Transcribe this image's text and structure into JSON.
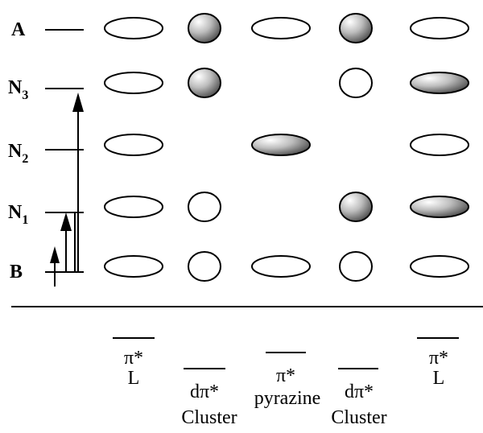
{
  "levels": [
    {
      "id": "A",
      "name": "A",
      "sub": ""
    },
    {
      "id": "N3",
      "name": "N",
      "sub": "3"
    },
    {
      "id": "N2",
      "name": "N",
      "sub": "2"
    },
    {
      "id": "N1",
      "name": "N",
      "sub": "1"
    },
    {
      "id": "B",
      "name": "B",
      "sub": ""
    }
  ],
  "columns": [
    {
      "id": "c1",
      "kind": "L",
      "label1": "π*",
      "label2": "L"
    },
    {
      "id": "c2",
      "kind": "cluster",
      "label1": "dπ*",
      "label2": "Cluster"
    },
    {
      "id": "c3",
      "kind": "pyrazine",
      "label1": "π*",
      "label2": "pyrazine"
    },
    {
      "id": "c4",
      "kind": "cluster",
      "label1": "dπ*",
      "label2": "Cluster"
    },
    {
      "id": "c5",
      "kind": "L",
      "label1": "π*",
      "label2": "L"
    }
  ],
  "orbitals": {
    "A": [
      "empty",
      "filled",
      "empty",
      "filled",
      "empty"
    ],
    "N3": [
      "empty",
      "filled",
      "none",
      "empty",
      "filled"
    ],
    "N2": [
      "empty",
      "none",
      "filled",
      "none",
      "empty"
    ],
    "N1": [
      "empty",
      "empty",
      "none",
      "filled",
      "filled"
    ],
    "B": [
      "empty",
      "empty",
      "empty",
      "empty",
      "empty"
    ]
  },
  "colors": {
    "line": "#000000",
    "fill_highlight": "#ffffff",
    "fill_mid": "#bdbdbd",
    "fill_shadow": "#3a3a3a"
  }
}
